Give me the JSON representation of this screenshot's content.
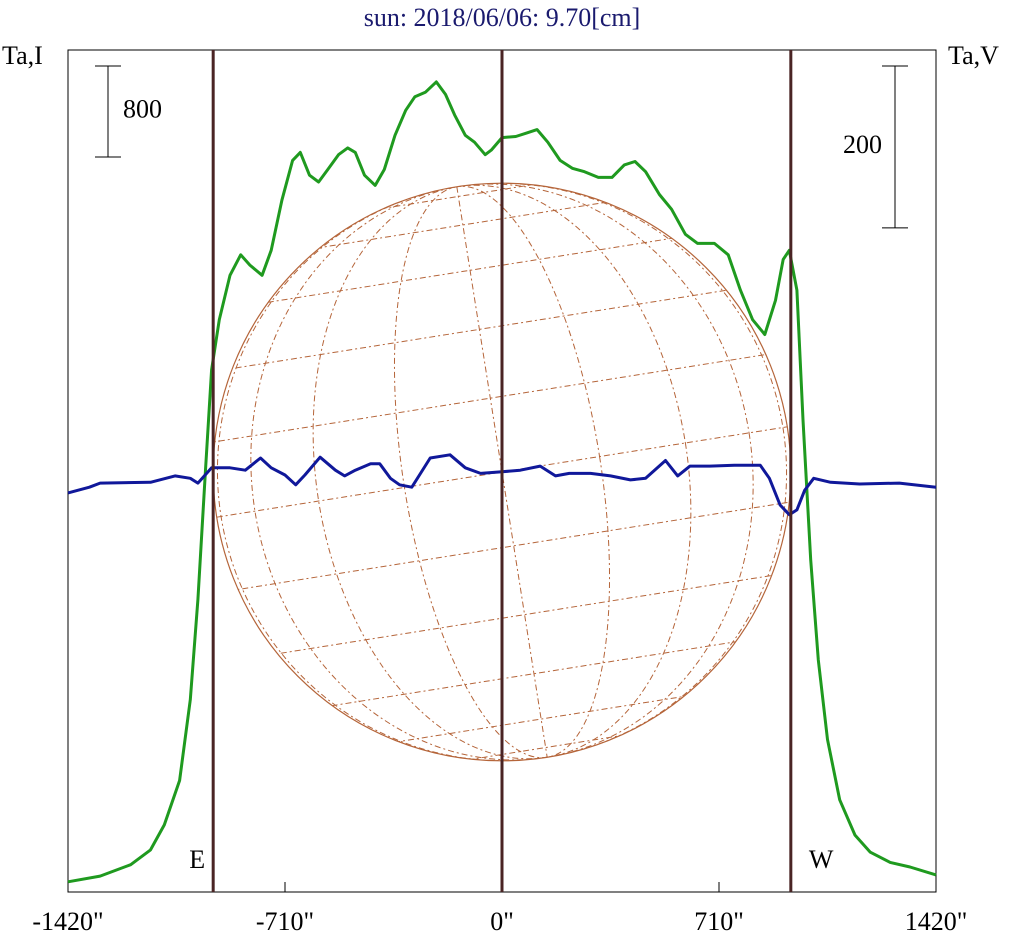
{
  "chart_data": {
    "type": "line",
    "title": "sun: 2018/06/06: 9.70[cm]",
    "title_color": "#1a1a6e",
    "y_label": "Ta,I",
    "y2_label": "Ta,V",
    "xlim": [
      -1420,
      1420
    ],
    "xticks": [
      {
        "value": -1420,
        "label": "-1420\""
      },
      {
        "value": -710,
        "label": "-710\""
      },
      {
        "value": 0,
        "label": "0\""
      },
      {
        "value": 710,
        "label": "710\""
      },
      {
        "value": 1420,
        "label": "1420\""
      }
    ],
    "ylim": [
      0,
      7400
    ],
    "y2lim": [
      -510,
      530
    ],
    "scale_bars": [
      {
        "value": 800,
        "axis": "y"
      },
      {
        "value": 200,
        "axis": "y2"
      }
    ],
    "markers": [
      {
        "x": -945,
        "label": "E"
      },
      {
        "x": 0
      },
      {
        "x": 945,
        "label": "W"
      }
    ],
    "marker_color": "#4a2424",
    "disc_color": "#b5653a",
    "series": [
      {
        "name": "I",
        "color": "#1f9a1f",
        "x": [
          -1420,
          -1315,
          -1215,
          -1150,
          -1105,
          -1055,
          -1020,
          -995,
          -970,
          -950,
          -925,
          -890,
          -855,
          -825,
          -785,
          -755,
          -720,
          -685,
          -660,
          -630,
          -600,
          -570,
          -535,
          -505,
          -480,
          -450,
          -415,
          -385,
          -350,
          -315,
          -285,
          -250,
          -215,
          -185,
          -155,
          -120,
          -90,
          -55,
          -35,
          0,
          45,
          80,
          115,
          150,
          190,
          230,
          270,
          315,
          360,
          400,
          435,
          470,
          515,
          555,
          600,
          640,
          695,
          740,
          780,
          820,
          860,
          895,
          920,
          940,
          965,
          985,
          1010,
          1035,
          1065,
          1105,
          1155,
          1205,
          1270,
          1335,
          1420
        ],
        "values": [
          90,
          140,
          240,
          370,
          590,
          980,
          1690,
          2570,
          3710,
          4590,
          5030,
          5420,
          5600,
          5510,
          5420,
          5640,
          6080,
          6430,
          6500,
          6300,
          6240,
          6350,
          6480,
          6540,
          6500,
          6300,
          6210,
          6350,
          6650,
          6870,
          6990,
          7030,
          7120,
          7010,
          6830,
          6650,
          6590,
          6480,
          6520,
          6630,
          6640,
          6670,
          6700,
          6590,
          6430,
          6360,
          6330,
          6280,
          6280,
          6390,
          6420,
          6330,
          6130,
          6000,
          5780,
          5700,
          5700,
          5600,
          5290,
          5030,
          4900,
          5200,
          5560,
          5640,
          5290,
          4150,
          2920,
          2040,
          1340,
          810,
          500,
          350,
          260,
          220,
          150
        ]
      },
      {
        "name": "V",
        "color": "#10189a",
        "axis": "y2",
        "x": [
          -1420,
          -1350,
          -1315,
          -1150,
          -1070,
          -1020,
          -995,
          -950,
          -890,
          -840,
          -790,
          -755,
          -710,
          -675,
          -645,
          -595,
          -545,
          -515,
          -480,
          -430,
          -400,
          -365,
          -335,
          -295,
          -270,
          -235,
          -170,
          -120,
          -70,
          0,
          60,
          125,
          175,
          220,
          290,
          355,
          420,
          470,
          535,
          575,
          615,
          680,
          760,
          810,
          845,
          875,
          910,
          940,
          965,
          990,
          1020,
          1075,
          1170,
          1300,
          1420
        ],
        "values": [
          -17,
          -10,
          -5,
          -4,
          4,
          1,
          -5,
          14,
          14,
          11,
          26,
          14,
          5,
          -7,
          5,
          27,
          11,
          4,
          11,
          19,
          19,
          1,
          -7,
          -10,
          5,
          26,
          30,
          14,
          7,
          9,
          11,
          16,
          4,
          7,
          7,
          4,
          -1,
          1,
          23,
          4,
          16,
          16,
          17,
          17,
          17,
          1,
          -32,
          -44,
          -38,
          -14,
          1,
          -4,
          -6,
          -5,
          -10
        ]
      }
    ]
  }
}
